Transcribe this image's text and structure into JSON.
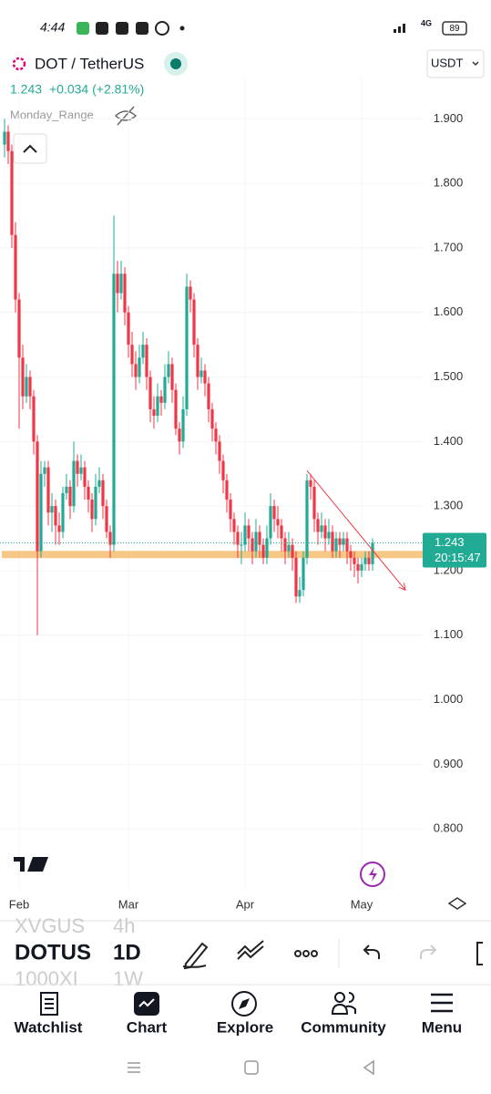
{
  "status_bar": {
    "time": "4:44",
    "network": "4G",
    "battery": "89"
  },
  "header": {
    "symbol": "DOT / TetherUS",
    "currency": "USDT",
    "price": "1.243",
    "change": "+0.034 (+2.81%)",
    "indicator": "Monday_Range"
  },
  "chart_data": {
    "type": "candlestick",
    "up_color": "#22ab94",
    "down_color": "#f23645",
    "ylim": [
      0.707,
      1.964
    ],
    "yticks": [
      {
        "value": 1.9,
        "label": "1.900"
      },
      {
        "value": 1.8,
        "label": "1.800"
      },
      {
        "value": 1.7,
        "label": "1.700"
      },
      {
        "value": 1.6,
        "label": "1.600"
      },
      {
        "value": 1.5,
        "label": "1.500"
      },
      {
        "value": 1.4,
        "label": "1.400"
      },
      {
        "value": 1.3,
        "label": "1.300"
      },
      {
        "value": 1.2,
        "label": "1.200"
      },
      {
        "value": 1.1,
        "label": "1.100"
      },
      {
        "value": 1.0,
        "label": "1.000"
      },
      {
        "value": 0.9,
        "label": "0.900"
      },
      {
        "value": 0.8,
        "label": "0.800"
      }
    ],
    "grid": true,
    "categories": [
      null,
      null,
      null,
      null,
      "Feb",
      null,
      null,
      null,
      null,
      null,
      null,
      null,
      null,
      null,
      null,
      null,
      null,
      null,
      null,
      null,
      null,
      null,
      null,
      null,
      null,
      null,
      null,
      null,
      null,
      null,
      null,
      null,
      null,
      null,
      "Mar",
      null,
      null,
      null,
      null,
      null,
      null,
      null,
      null,
      null,
      null,
      null,
      null,
      null,
      null,
      null,
      null,
      null,
      null,
      null,
      null,
      null,
      null,
      null,
      null,
      null,
      null,
      null,
      null,
      null,
      null,
      null,
      "Apr",
      null,
      null,
      null,
      null,
      null,
      null,
      null,
      null,
      null,
      null,
      null,
      null,
      null,
      null,
      null,
      null,
      null,
      null,
      null,
      null,
      null,
      null,
      null,
      null,
      null,
      null,
      null,
      null,
      null,
      null,
      null,
      "May",
      null,
      null,
      null
    ],
    "candles": [
      [
        1.86,
        1.9,
        1.84,
        1.88
      ],
      [
        1.88,
        1.89,
        1.83,
        1.85
      ],
      [
        1.85,
        1.86,
        1.7,
        1.72
      ],
      [
        1.72,
        1.74,
        1.6,
        1.62
      ],
      [
        1.62,
        1.63,
        1.42,
        1.53
      ],
      [
        1.53,
        1.55,
        1.45,
        1.47
      ],
      [
        1.47,
        1.52,
        1.46,
        1.5
      ],
      [
        1.5,
        1.51,
        1.45,
        1.47
      ],
      [
        1.47,
        1.48,
        1.38,
        1.4
      ],
      [
        1.4,
        1.41,
        1.1,
        1.23
      ],
      [
        1.23,
        1.37,
        1.22,
        1.35
      ],
      [
        1.35,
        1.37,
        1.33,
        1.36
      ],
      [
        1.36,
        1.37,
        1.27,
        1.29
      ],
      [
        1.29,
        1.32,
        1.26,
        1.3
      ],
      [
        1.3,
        1.31,
        1.24,
        1.27
      ],
      [
        1.27,
        1.29,
        1.24,
        1.26
      ],
      [
        1.26,
        1.33,
        1.25,
        1.32
      ],
      [
        1.32,
        1.35,
        1.31,
        1.33
      ],
      [
        1.33,
        1.34,
        1.28,
        1.3
      ],
      [
        1.3,
        1.4,
        1.29,
        1.37
      ],
      [
        1.37,
        1.38,
        1.33,
        1.35
      ],
      [
        1.35,
        1.38,
        1.34,
        1.36
      ],
      [
        1.36,
        1.37,
        1.31,
        1.33
      ],
      [
        1.33,
        1.34,
        1.29,
        1.31
      ],
      [
        1.31,
        1.32,
        1.26,
        1.28
      ],
      [
        1.28,
        1.35,
        1.27,
        1.33
      ],
      [
        1.33,
        1.36,
        1.32,
        1.34
      ],
      [
        1.34,
        1.35,
        1.28,
        1.3
      ],
      [
        1.3,
        1.31,
        1.25,
        1.26
      ],
      [
        1.26,
        1.27,
        1.22,
        1.24
      ],
      [
        1.24,
        1.75,
        1.23,
        1.66
      ],
      [
        1.66,
        1.68,
        1.6,
        1.63
      ],
      [
        1.63,
        1.68,
        1.62,
        1.66
      ],
      [
        1.66,
        1.67,
        1.58,
        1.6
      ],
      [
        1.6,
        1.61,
        1.53,
        1.55
      ],
      [
        1.55,
        1.57,
        1.5,
        1.52
      ],
      [
        1.52,
        1.54,
        1.48,
        1.5
      ],
      [
        1.5,
        1.55,
        1.49,
        1.53
      ],
      [
        1.53,
        1.57,
        1.52,
        1.55
      ],
      [
        1.55,
        1.56,
        1.48,
        1.5
      ],
      [
        1.5,
        1.51,
        1.43,
        1.45
      ],
      [
        1.45,
        1.47,
        1.42,
        1.44
      ],
      [
        1.44,
        1.49,
        1.43,
        1.47
      ],
      [
        1.47,
        1.48,
        1.44,
        1.46
      ],
      [
        1.46,
        1.52,
        1.45,
        1.5
      ],
      [
        1.5,
        1.54,
        1.49,
        1.52
      ],
      [
        1.52,
        1.53,
        1.46,
        1.48
      ],
      [
        1.48,
        1.49,
        1.41,
        1.42
      ],
      [
        1.42,
        1.43,
        1.38,
        1.4
      ],
      [
        1.4,
        1.47,
        1.39,
        1.45
      ],
      [
        1.45,
        1.66,
        1.44,
        1.64
      ],
      [
        1.64,
        1.65,
        1.6,
        1.62
      ],
      [
        1.62,
        1.63,
        1.53,
        1.55
      ],
      [
        1.55,
        1.56,
        1.48,
        1.5
      ],
      [
        1.5,
        1.53,
        1.49,
        1.51
      ],
      [
        1.51,
        1.52,
        1.47,
        1.49
      ],
      [
        1.49,
        1.5,
        1.43,
        1.45
      ],
      [
        1.45,
        1.46,
        1.4,
        1.42
      ],
      [
        1.42,
        1.43,
        1.38,
        1.4
      ],
      [
        1.4,
        1.41,
        1.35,
        1.37
      ],
      [
        1.37,
        1.38,
        1.32,
        1.34
      ],
      [
        1.34,
        1.35,
        1.29,
        1.31
      ],
      [
        1.31,
        1.32,
        1.26,
        1.28
      ],
      [
        1.28,
        1.29,
        1.24,
        1.26
      ],
      [
        1.26,
        1.27,
        1.22,
        1.24
      ],
      [
        1.24,
        1.26,
        1.21,
        1.24
      ],
      [
        1.24,
        1.29,
        1.23,
        1.27
      ],
      [
        1.27,
        1.28,
        1.23,
        1.25
      ],
      [
        1.25,
        1.26,
        1.21,
        1.23
      ],
      [
        1.23,
        1.28,
        1.22,
        1.26
      ],
      [
        1.26,
        1.27,
        1.22,
        1.24
      ],
      [
        1.24,
        1.25,
        1.21,
        1.22
      ],
      [
        1.22,
        1.27,
        1.21,
        1.25
      ],
      [
        1.25,
        1.32,
        1.24,
        1.3
      ],
      [
        1.3,
        1.31,
        1.26,
        1.28
      ],
      [
        1.28,
        1.3,
        1.25,
        1.27
      ],
      [
        1.27,
        1.28,
        1.23,
        1.25
      ],
      [
        1.25,
        1.26,
        1.21,
        1.23
      ],
      [
        1.23,
        1.26,
        1.22,
        1.24
      ],
      [
        1.24,
        1.25,
        1.2,
        1.22
      ],
      [
        1.22,
        1.23,
        1.15,
        1.16
      ],
      [
        1.16,
        1.19,
        1.15,
        1.17
      ],
      [
        1.17,
        1.23,
        1.16,
        1.22
      ],
      [
        1.22,
        1.35,
        1.21,
        1.34
      ],
      [
        1.34,
        1.35,
        1.31,
        1.33
      ],
      [
        1.33,
        1.34,
        1.26,
        1.28
      ],
      [
        1.28,
        1.29,
        1.24,
        1.26
      ],
      [
        1.26,
        1.29,
        1.25,
        1.27
      ],
      [
        1.27,
        1.28,
        1.23,
        1.25
      ],
      [
        1.25,
        1.28,
        1.24,
        1.26
      ],
      [
        1.26,
        1.27,
        1.22,
        1.23
      ],
      [
        1.23,
        1.26,
        1.22,
        1.25
      ],
      [
        1.25,
        1.26,
        1.22,
        1.24
      ],
      [
        1.24,
        1.26,
        1.23,
        1.25
      ],
      [
        1.25,
        1.26,
        1.21,
        1.23
      ],
      [
        1.23,
        1.24,
        1.2,
        1.22
      ],
      [
        1.22,
        1.23,
        1.19,
        1.21
      ],
      [
        1.21,
        1.22,
        1.18,
        1.2
      ],
      [
        1.2,
        1.22,
        1.19,
        1.21
      ],
      [
        1.21,
        1.23,
        1.2,
        1.22
      ],
      [
        1.22,
        1.23,
        1.2,
        1.21
      ],
      [
        1.21,
        1.25,
        1.2,
        1.243
      ]
    ],
    "support_level": 1.225,
    "support_color": "#f7c27a",
    "trendline": {
      "x": [
        83,
        110
      ],
      "y": [
        1.355,
        1.17
      ],
      "color": "#f23645"
    },
    "last_price": {
      "value": 1.243,
      "label": "1.243",
      "countdown": "20:15:47"
    }
  },
  "toolbar": {
    "symbols": [
      "XVGUS",
      "DOTUS",
      "1000XI"
    ],
    "intervals": [
      "4h",
      "1D",
      "1W"
    ]
  },
  "nav": [
    "Watchlist",
    "Chart",
    "Explore",
    "Community",
    "Menu"
  ]
}
